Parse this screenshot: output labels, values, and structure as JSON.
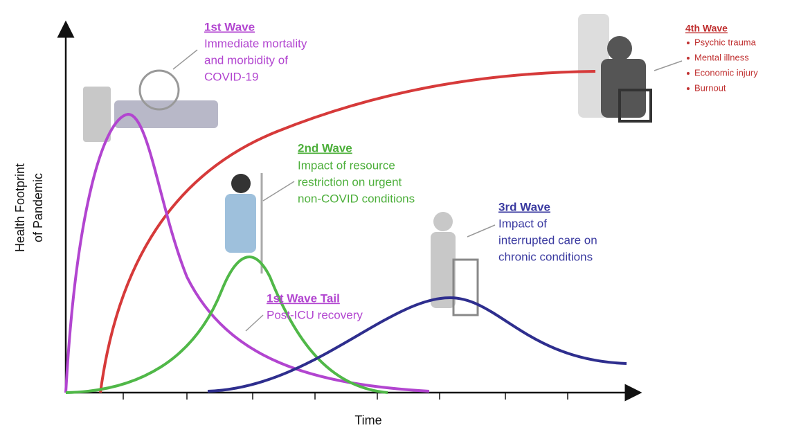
{
  "axes": {
    "y_label": [
      "Health Footprint",
      "of Pandemic"
    ],
    "x_label": "Time"
  },
  "wave1": {
    "title": "1st Wave",
    "lines": [
      "Immediate mortality",
      "and morbidity of",
      "COVID-19"
    ]
  },
  "wave1_tail": {
    "title": "1st Wave Tail",
    "lines": [
      "Post-ICU recovery"
    ]
  },
  "wave2": {
    "title": "2nd Wave",
    "lines": [
      "Impact of resource",
      "restriction on urgent",
      "non-COVID conditions"
    ]
  },
  "wave3": {
    "title": "3rd Wave",
    "lines": [
      "Impact of",
      "interrupted care on",
      "chronic conditions"
    ]
  },
  "wave4": {
    "title": "4th Wave",
    "items": [
      "Psychic trauma",
      "Mental illness",
      "Economic injury",
      "Burnout"
    ]
  }
}
